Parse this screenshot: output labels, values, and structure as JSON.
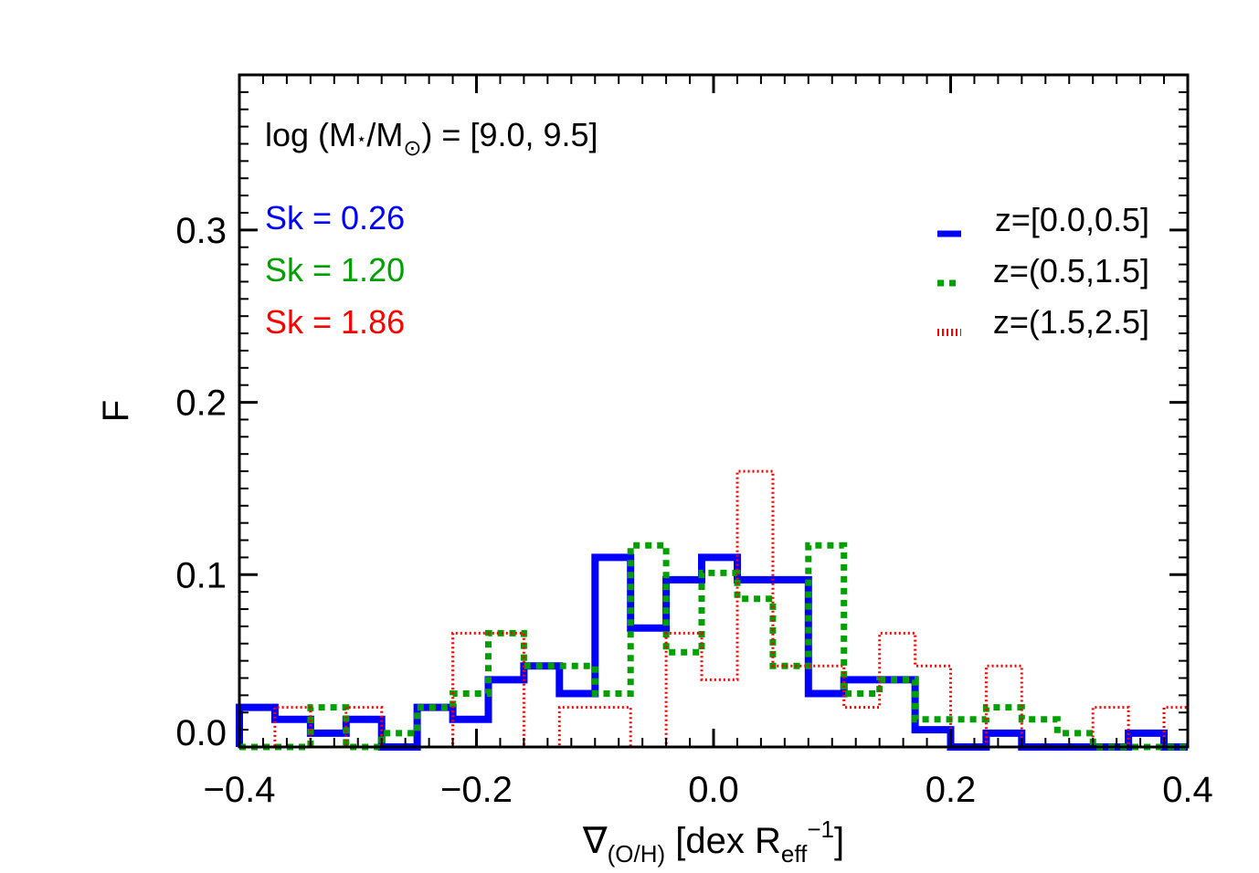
{
  "chart_data": {
    "type": "histogram-step",
    "title": "",
    "mass_label": {
      "prefix": "log (M",
      "star": "⋆",
      "slash": "/M",
      "sun": "⊙",
      "suffix": ") = [9.0, 9.5]"
    },
    "xlabel": {
      "nabla": "∇",
      "sub": "(O/H)",
      "main": " [dex R",
      "sub2": "eff",
      "sup": "−1",
      "close": "]"
    },
    "ylabel": "F",
    "xlim": [
      -0.4,
      0.4
    ],
    "ylim": [
      0.0,
      0.39
    ],
    "x_ticks": [
      -0.4,
      -0.2,
      0.0,
      0.2,
      0.4
    ],
    "x_tick_labels": [
      "−0.4",
      "−0.2",
      "0.0",
      "0.2",
      "0.4"
    ],
    "y_ticks": [
      0.0,
      0.1,
      0.2,
      0.3
    ],
    "y_tick_labels": [
      "0.0",
      "0.1",
      "0.2",
      "0.3"
    ],
    "x_minor_step": 0.02,
    "y_minor_step": 0.01,
    "bin_edges": [
      -0.4,
      -0.37,
      -0.34,
      -0.31,
      -0.28,
      -0.25,
      -0.22,
      -0.19,
      -0.16,
      -0.13,
      -0.1,
      -0.07,
      -0.04,
      -0.01,
      0.02,
      0.05,
      0.08,
      0.11,
      0.14,
      0.17,
      0.2,
      0.23,
      0.26,
      0.29,
      0.32,
      0.35,
      0.38,
      0.41
    ],
    "series": [
      {
        "name": "z=[0.0,0.5]",
        "color": "#0000ff",
        "style": "solid",
        "values": [
          0.023,
          0.016,
          0.008,
          0.016,
          0.0,
          0.023,
          0.016,
          0.039,
          0.047,
          0.031,
          0.11,
          0.069,
          0.097,
          0.11,
          0.097,
          0.097,
          0.031,
          0.039,
          0.039,
          0.01,
          0.0,
          0.008,
          0.0,
          0.0,
          0.0,
          0.008,
          0.0
        ]
      },
      {
        "name": "z=(0.5,1.5]",
        "color": "#00a000",
        "style": "dotted",
        "values": [
          0.0,
          0.0,
          0.023,
          0.0,
          0.008,
          0.023,
          0.031,
          0.066,
          0.047,
          0.047,
          0.031,
          0.117,
          0.055,
          0.101,
          0.086,
          0.047,
          0.117,
          0.031,
          0.039,
          0.016,
          0.016,
          0.023,
          0.016,
          0.008,
          0.0,
          0.0,
          0.0
        ]
      },
      {
        "name": "z=(1.5,2.5]",
        "color": "#ff0000",
        "style": "fine-dotted",
        "values": [
          0.0,
          0.023,
          0.0,
          0.023,
          0.0,
          0.0,
          0.066,
          0.066,
          0.0,
          0.023,
          0.023,
          0.0,
          0.066,
          0.039,
          0.16,
          0.047,
          0.047,
          0.023,
          0.066,
          0.047,
          0.0,
          0.047,
          0.0,
          0.0,
          0.023,
          0.0,
          0.023
        ]
      }
    ],
    "skewness": [
      {
        "text": "Sk = 0.26",
        "color": "#0000ff"
      },
      {
        "text": "Sk = 1.20",
        "color": "#00a000"
      },
      {
        "text": "Sk = 1.86",
        "color": "#ff0000"
      }
    ],
    "legend_placement": "top-right",
    "grid": false
  }
}
